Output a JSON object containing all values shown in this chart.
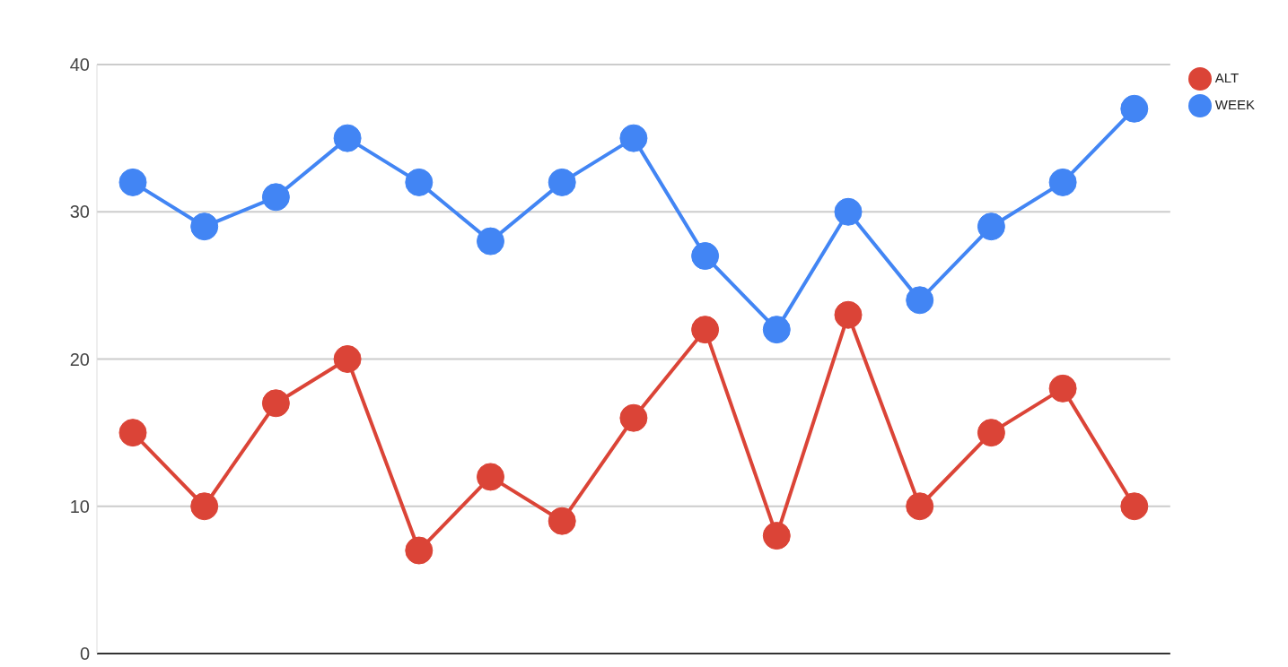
{
  "chart_data": {
    "type": "line",
    "categories": [
      null,
      null,
      null,
      null,
      null,
      null,
      null,
      null,
      null,
      null,
      null,
      null,
      null,
      null,
      null
    ],
    "series": [
      {
        "name": "WEEK",
        "color": "#4285f4",
        "values": [
          32,
          29,
          31,
          35,
          32,
          28,
          32,
          35,
          27,
          22,
          30,
          24,
          29,
          32,
          37
        ]
      },
      {
        "name": "ALT",
        "color": "#db4437",
        "values": [
          15,
          10,
          17,
          20,
          7,
          12,
          9,
          16,
          22,
          8,
          23,
          10,
          15,
          18,
          10
        ]
      }
    ],
    "ylim": [
      0,
      40
    ],
    "yticks": [
      0,
      10,
      20,
      30,
      40
    ],
    "grid": "y",
    "legend": "top right",
    "marker": "circle",
    "line_style": "solid"
  }
}
